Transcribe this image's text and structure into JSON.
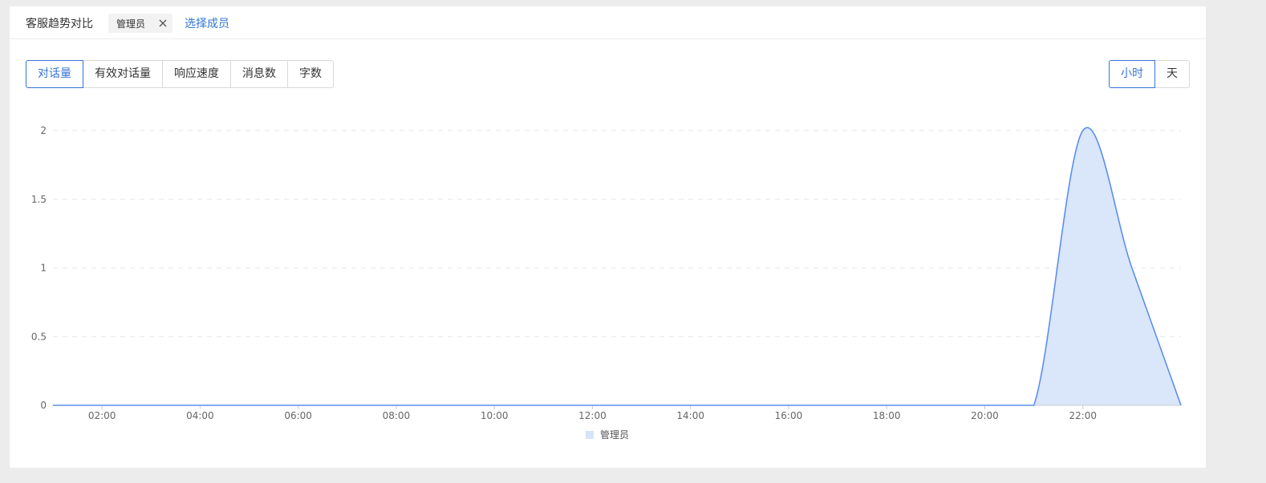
{
  "header": {
    "title": "客服趋势对比",
    "chip_label": "管理员",
    "select_link": "选择成员"
  },
  "metric_tabs": [
    {
      "label": "对话量",
      "active": true
    },
    {
      "label": "有效对话量",
      "active": false
    },
    {
      "label": "响应速度",
      "active": false
    },
    {
      "label": "消息数",
      "active": false
    },
    {
      "label": "字数",
      "active": false
    }
  ],
  "granularity_tabs": [
    {
      "label": "小时",
      "active": true
    },
    {
      "label": "天",
      "active": false
    }
  ],
  "colors": {
    "accent": "#3574d4",
    "series_line": "#5b8ff0",
    "series_fill": "#d6e3fa",
    "grid": "#e6e6e6"
  },
  "chart_data": {
    "type": "area",
    "x_tick_labels": [
      "02:00",
      "04:00",
      "06:00",
      "08:00",
      "10:00",
      "12:00",
      "14:00",
      "16:00",
      "18:00",
      "20:00",
      "22:00"
    ],
    "y_tick_labels": [
      "0",
      "0.5",
      "1",
      "1.5",
      "2"
    ],
    "ylim": [
      0,
      2
    ],
    "xlim_hours": [
      1,
      24
    ],
    "grid": "horizontal dashed",
    "legend_position": "bottom-center",
    "series": [
      {
        "name": "管理员",
        "x_hours": [
          1,
          2,
          3,
          4,
          5,
          6,
          7,
          8,
          9,
          10,
          11,
          12,
          13,
          14,
          15,
          16,
          17,
          18,
          19,
          20,
          21,
          22,
          23,
          24
        ],
        "values": [
          0,
          0,
          0,
          0,
          0,
          0,
          0,
          0,
          0,
          0,
          0,
          0,
          0,
          0,
          0,
          0,
          0,
          0,
          0,
          0,
          0,
          2,
          1,
          0
        ]
      }
    ]
  }
}
